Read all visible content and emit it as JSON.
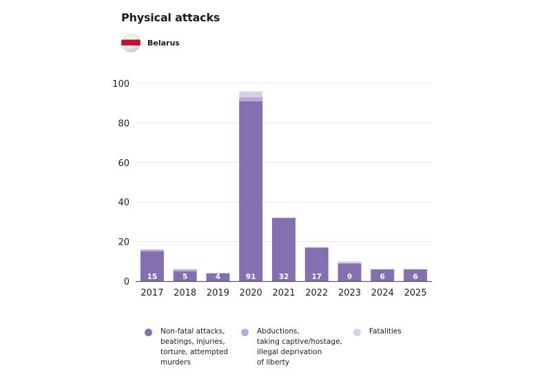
{
  "header": {
    "title": "Physical attacks",
    "country": "Belarus",
    "flag_icon": "belarus-flag-icon"
  },
  "colors": {
    "non_fatal": "#8470b0",
    "abductions": "#b9a9d8",
    "fatalities": "#dccfe9",
    "grid": "#e6e6e6",
    "axis": "#555555"
  },
  "chart_data": {
    "type": "bar",
    "stacked": true,
    "title": "Physical attacks",
    "subtitle": "Belarus",
    "xlabel": "",
    "ylabel": "",
    "categories": [
      "2017",
      "2018",
      "2019",
      "2020",
      "2021",
      "2022",
      "2023",
      "2024",
      "2025"
    ],
    "series": [
      {
        "name": "Non-fatal attacks, beatings, injuries, torture, attempted murders",
        "values": [
          15,
          5,
          4,
          91,
          32,
          17,
          9,
          6,
          6
        ]
      },
      {
        "name": "Abductions, taking captive/hostage, illegal deprivation of liberty",
        "values": [
          1,
          1,
          0,
          2,
          0,
          0,
          0,
          0,
          0
        ]
      },
      {
        "name": "Fatalities",
        "values": [
          0,
          0,
          0,
          3,
          0,
          0,
          1,
          0,
          0
        ]
      }
    ],
    "data_labels": [
      "15",
      "5",
      "4",
      "91",
      "32",
      "17",
      "9",
      "6",
      "6"
    ],
    "yticks": [
      0,
      20,
      40,
      60,
      80,
      100
    ],
    "ylim": [
      0,
      100
    ],
    "grid": true,
    "legend_position": "bottom"
  },
  "legend": [
    {
      "label": "Non-fatal attacks,\nbeatings, injuries,\ntorture, attempted\nmurders"
    },
    {
      "label": "Abductions,\ntaking captive/hostage,\nillegal deprivation\nof liberty"
    },
    {
      "label": "Fatalities"
    }
  ]
}
